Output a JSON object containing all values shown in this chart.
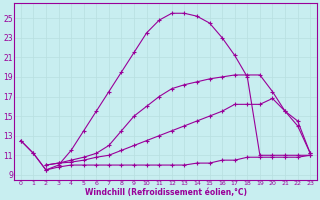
{
  "xlabel": "Windchill (Refroidissement éolien,°C)",
  "bg_color": "#c8eef0",
  "line_color": "#990099",
  "grid_color": "#b8dfe0",
  "xlim": [
    -0.5,
    23.5
  ],
  "ylim": [
    8.5,
    26.5
  ],
  "xticks": [
    0,
    1,
    2,
    3,
    4,
    5,
    6,
    7,
    8,
    9,
    10,
    11,
    12,
    13,
    14,
    15,
    16,
    17,
    18,
    19,
    20,
    21,
    22,
    23
  ],
  "yticks": [
    9,
    11,
    13,
    15,
    17,
    19,
    21,
    23,
    25
  ],
  "line_peaked_x": [
    0,
    1,
    2,
    3,
    4,
    5,
    6,
    7,
    8,
    9,
    10,
    11,
    12,
    13,
    14,
    15,
    16,
    17,
    18,
    19,
    20,
    21,
    22,
    23
  ],
  "line_peaked_y": [
    12.5,
    11.2,
    9.5,
    10.0,
    11.5,
    13.5,
    15.5,
    17.5,
    19.5,
    21.5,
    23.5,
    24.8,
    25.5,
    25.5,
    25.2,
    24.5,
    23.0,
    21.2,
    19.0,
    11.0,
    11.0,
    11.0,
    11.0,
    11.0
  ],
  "line_upper_diag_x": [
    2,
    3,
    4,
    5,
    6,
    7,
    8,
    9,
    10,
    11,
    12,
    13,
    14,
    15,
    16,
    17,
    18,
    19,
    20,
    21,
    22,
    23
  ],
  "line_upper_diag_y": [
    10.0,
    10.2,
    10.5,
    10.8,
    11.2,
    12.0,
    13.5,
    15.0,
    16.0,
    17.0,
    17.8,
    18.2,
    18.5,
    18.8,
    19.0,
    19.2,
    19.2,
    19.2,
    17.5,
    15.5,
    14.5,
    11.2
  ],
  "line_lower_diag_x": [
    2,
    3,
    4,
    5,
    6,
    7,
    8,
    9,
    10,
    11,
    12,
    13,
    14,
    15,
    16,
    17,
    18,
    19,
    20,
    21,
    22,
    23
  ],
  "line_lower_diag_y": [
    10.0,
    10.2,
    10.3,
    10.5,
    10.8,
    11.0,
    11.5,
    12.0,
    12.5,
    13.0,
    13.5,
    14.0,
    14.5,
    15.0,
    15.5,
    16.2,
    16.2,
    16.2,
    16.8,
    15.5,
    14.0,
    11.2
  ],
  "line_flat_x": [
    0,
    1,
    2,
    3,
    4,
    5,
    6,
    7,
    8,
    9,
    10,
    11,
    12,
    13,
    14,
    15,
    16,
    17,
    18,
    19,
    20,
    21,
    22,
    23
  ],
  "line_flat_y": [
    12.5,
    11.2,
    9.5,
    9.8,
    10.0,
    10.0,
    10.0,
    10.0,
    10.0,
    10.0,
    10.0,
    10.0,
    10.0,
    10.0,
    10.2,
    10.2,
    10.5,
    10.5,
    10.8,
    10.8,
    10.8,
    10.8,
    10.8,
    11.0
  ]
}
